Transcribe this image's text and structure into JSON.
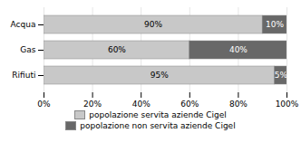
{
  "chart_data": {
    "type": "bar",
    "orientation": "horizontal",
    "stacked": true,
    "categories": [
      "Rifiuti",
      "Gas",
      "Acqua"
    ],
    "series": [
      {
        "name": "popolazione servita aziende Cigel",
        "color": "#c8c8c8",
        "values": [
          95,
          60,
          90
        ],
        "value_labels": [
          "95%",
          "60%",
          "90%"
        ]
      },
      {
        "name": "popolazione non servita aziende Cigel",
        "color": "#686868",
        "values": [
          5,
          40,
          10
        ],
        "value_labels": [
          "5%",
          "40%",
          "10%"
        ]
      }
    ],
    "xlim": [
      0,
      100
    ],
    "xticks": [
      {
        "value": 0,
        "label": "0%"
      },
      {
        "value": 20,
        "label": "20%"
      },
      {
        "value": 40,
        "label": "40%"
      },
      {
        "value": 60,
        "label": "60%"
      },
      {
        "value": 80,
        "label": "80%"
      },
      {
        "value": 100,
        "label": "100%"
      }
    ],
    "grid": true,
    "data_labels": true,
    "legend": "bottom"
  }
}
